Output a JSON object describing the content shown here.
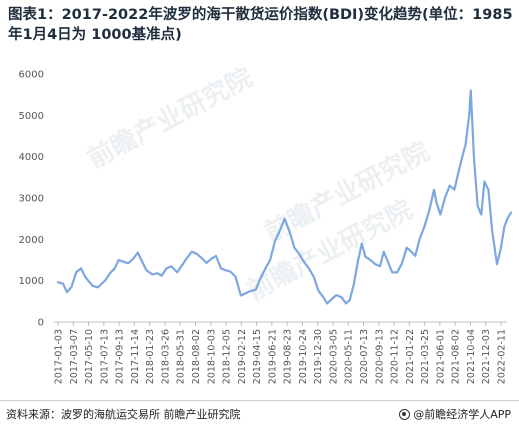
{
  "title": "图表1：2017-2022年波罗的海干散货运价指数(BDI)变化趋势(单位：1985年1月4日为 1000基准点)",
  "footer": {
    "source": "资料来源：波罗的海航运交易所 前瞻产业研究院",
    "brand": "@前瞻经济学人APP"
  },
  "watermark": {
    "text": "前瞻产业研究院"
  },
  "colors": {
    "line": "#7ea6e0",
    "axis": "#bfbfbf",
    "title": "#1f2d3d"
  },
  "chart_data": {
    "type": "line",
    "title": "",
    "xlabel": "",
    "ylabel": "",
    "ylim": [
      0,
      6000
    ],
    "yticks": [
      0,
      1000,
      2000,
      3000,
      4000,
      5000,
      6000
    ],
    "grid": false,
    "legend": "none",
    "x_tick_labels": [
      "2017-01-03",
      "2017-03-07",
      "2017-05-10",
      "2017-07-13",
      "2017-09-13",
      "2017-11-14",
      "2018-01-23",
      "2018-03-26",
      "2018-05-31",
      "2018-08-02",
      "2018-10-03",
      "2018-12-05",
      "2019-02-12",
      "2019-04-15",
      "2019-06-21",
      "2019-08-23",
      "2019-10-24",
      "2019-12-30",
      "2020-03-05",
      "2020-05-11",
      "2020-07-13",
      "2020-09-13",
      "2020-11-12",
      "2021-01-22",
      "2021-03-25",
      "2021-06-01",
      "2021-08-02",
      "2021-10-04",
      "2021-12-03",
      "2022-02-11"
    ],
    "series": [
      {
        "x": [
          "2017-01-03",
          "2017-01-24",
          "2017-02-10",
          "2017-03-01",
          "2017-03-20",
          "2017-04-10",
          "2017-04-25",
          "2017-05-10",
          "2017-05-30",
          "2017-06-20",
          "2017-07-05",
          "2017-07-20",
          "2017-08-10",
          "2017-08-30",
          "2017-09-15",
          "2017-10-05",
          "2017-10-25",
          "2017-11-14",
          "2017-12-05",
          "2017-12-20",
          "2018-01-10",
          "2018-02-05",
          "2018-02-25",
          "2018-03-15",
          "2018-04-05",
          "2018-04-25",
          "2018-05-20",
          "2018-06-10",
          "2018-06-30",
          "2018-07-20",
          "2018-08-10",
          "2018-08-30",
          "2018-09-20",
          "2018-10-10",
          "2018-10-30",
          "2018-11-20",
          "2018-12-10",
          "2018-12-30",
          "2019-01-20",
          "2019-02-12",
          "2019-03-05",
          "2019-03-25",
          "2019-04-15",
          "2019-05-05",
          "2019-05-25",
          "2019-06-15",
          "2019-07-05",
          "2019-07-25",
          "2019-08-15",
          "2019-09-04",
          "2019-09-25",
          "2019-10-15",
          "2019-11-05",
          "2019-11-25",
          "2019-12-15",
          "2020-01-05",
          "2020-01-25",
          "2020-02-10",
          "2020-03-01",
          "2020-03-20",
          "2020-04-10",
          "2020-04-30",
          "2020-05-15",
          "2020-06-01",
          "2020-06-20",
          "2020-07-05",
          "2020-07-20",
          "2020-08-10",
          "2020-08-30",
          "2020-09-20",
          "2020-10-05",
          "2020-10-20",
          "2020-11-10",
          "2020-11-30",
          "2020-12-20",
          "2021-01-10",
          "2021-01-30",
          "2021-02-15",
          "2021-03-05",
          "2021-03-25",
          "2021-04-15",
          "2021-05-05",
          "2021-05-15",
          "2021-06-01",
          "2021-06-20",
          "2021-07-10",
          "2021-07-30",
          "2021-08-15",
          "2021-09-01",
          "2021-09-15",
          "2021-09-30",
          "2021-10-07",
          "2021-10-20",
          "2021-11-05",
          "2021-11-20",
          "2021-12-03",
          "2021-12-20",
          "2022-01-05",
          "2022-01-25",
          "2022-02-11",
          "2022-02-25",
          "2022-03-10",
          "2022-03-25"
        ],
        "values": [
          960,
          930,
          720,
          850,
          1200,
          1300,
          1120,
          1000,
          870,
          840,
          920,
          1000,
          1180,
          1300,
          1500,
          1460,
          1420,
          1520,
          1680,
          1500,
          1250,
          1150,
          1180,
          1120,
          1300,
          1350,
          1200,
          1380,
          1550,
          1700,
          1650,
          1550,
          1430,
          1530,
          1600,
          1300,
          1250,
          1220,
          1100,
          640,
          700,
          750,
          780,
          1050,
          1280,
          1500,
          1950,
          2200,
          2500,
          2200,
          1800,
          1650,
          1450,
          1300,
          1100,
          750,
          600,
          450,
          560,
          650,
          600,
          450,
          530,
          900,
          1500,
          1900,
          1580,
          1500,
          1400,
          1350,
          1700,
          1500,
          1200,
          1200,
          1400,
          1800,
          1700,
          1600,
          2000,
          2300,
          2700,
          3200,
          2900,
          2600,
          3000,
          3300,
          3200,
          3600,
          4000,
          4300,
          5000,
          5600,
          4000,
          2800,
          2600,
          3400,
          3200,
          2200,
          1400,
          1800,
          2300,
          2500,
          2650
        ]
      }
    ]
  }
}
